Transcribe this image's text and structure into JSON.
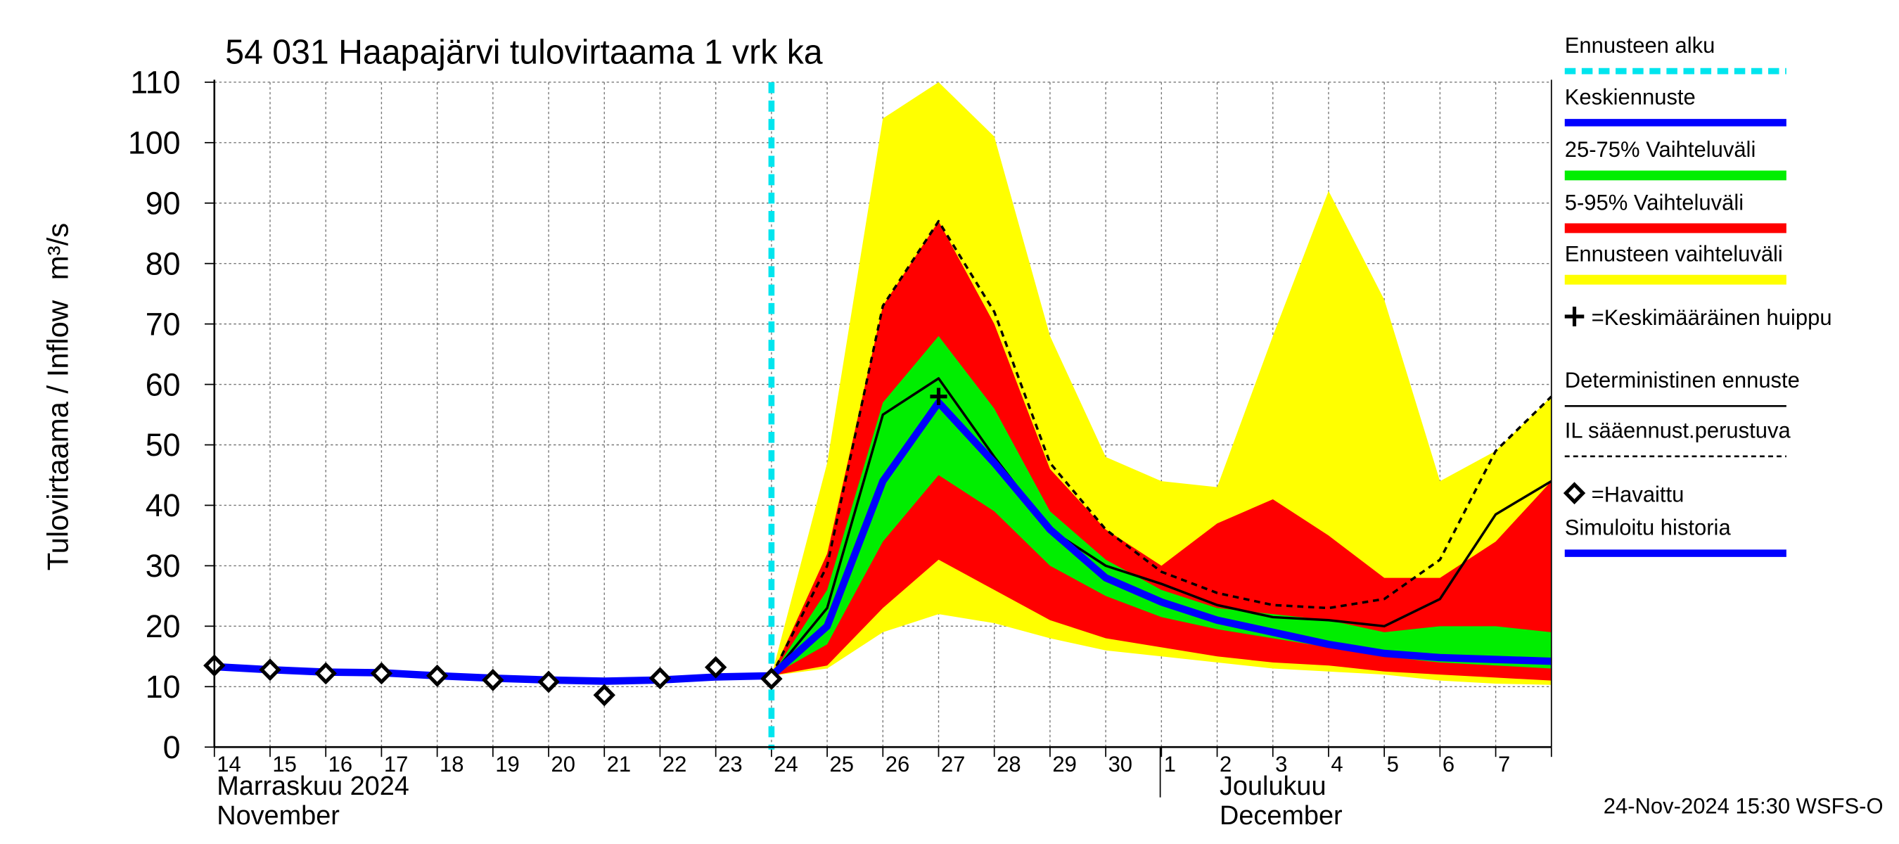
{
  "chart_data": {
    "type": "line",
    "title": "54 031 Haapajärvi tulovirtaama 1 vrk ka",
    "y_label": "Tulovirtaama / Inflow",
    "y_unit": "m³/s",
    "categories": [
      "14",
      "15",
      "16",
      "17",
      "18",
      "19",
      "20",
      "21",
      "22",
      "23",
      "24",
      "25",
      "26",
      "27",
      "28",
      "29",
      "30",
      "1",
      "2",
      "3",
      "4",
      "5",
      "6",
      "7",
      null
    ],
    "month_labels": [
      {
        "index": 0,
        "lines": [
          "Marraskuu 2024",
          "November"
        ]
      },
      {
        "index": 17,
        "lines": [
          "Joulukuu",
          "December"
        ]
      }
    ],
    "ylim": [
      0,
      110
    ],
    "yticks": [
      0,
      10,
      20,
      30,
      40,
      50,
      60,
      70,
      80,
      90,
      100,
      110
    ],
    "grid": true,
    "footer": "24-Nov-2024 15:30 WSFS-O",
    "series": [
      {
        "name": "Ennusteen alku",
        "color": "#00e5ee",
        "style": "vline",
        "values": [
          null,
          null,
          null,
          null,
          null,
          null,
          null,
          null,
          null,
          null,
          110,
          null,
          null,
          null,
          null,
          null,
          null,
          null,
          null,
          null,
          null,
          null,
          null,
          null,
          null
        ]
      },
      {
        "name": "Keskiennuste",
        "color": "#0000ff",
        "style": "mean",
        "values": [
          null,
          null,
          null,
          null,
          null,
          null,
          null,
          null,
          null,
          null,
          11.8,
          20,
          44,
          57,
          47,
          36,
          28,
          24,
          21,
          19,
          17,
          15.5,
          14.8,
          14.5,
          14.2
        ]
      },
      {
        "name": "25-75% Vaihteluväli",
        "color": "#00ee00",
        "style": "band",
        "values": [
          null,
          null,
          null,
          null,
          null,
          null,
          null,
          null,
          null,
          null,
          11.8,
          26,
          57,
          68,
          56,
          39,
          31,
          26,
          23,
          22,
          21,
          19,
          20,
          20,
          19
        ],
        "low": [
          null,
          null,
          null,
          null,
          null,
          null,
          null,
          null,
          null,
          null,
          11.8,
          17,
          34,
          45,
          39,
          30,
          25,
          21.5,
          19.5,
          18,
          16.5,
          15,
          14,
          13.5,
          13
        ]
      },
      {
        "name": "5-95% Vaihteluväli",
        "color": "#ff0000",
        "style": "band",
        "values": [
          null,
          null,
          null,
          null,
          null,
          null,
          null,
          null,
          null,
          null,
          11.8,
          32,
          73,
          87,
          70,
          46,
          36,
          30,
          37,
          41,
          35,
          28,
          28,
          34,
          44
        ],
        "low": [
          null,
          null,
          null,
          null,
          null,
          null,
          null,
          null,
          null,
          null,
          11.8,
          13.5,
          23,
          31,
          26,
          21,
          18,
          16.5,
          15,
          14,
          13.5,
          12.5,
          12,
          11.5,
          11
        ]
      },
      {
        "name": "Ennusteen vaihteluväli",
        "color": "#ffff00",
        "style": "band",
        "values": [
          null,
          null,
          null,
          null,
          null,
          null,
          null,
          null,
          null,
          null,
          11.8,
          47,
          104,
          110,
          101,
          68,
          48,
          44,
          43,
          68,
          92,
          74,
          44,
          49,
          58
        ],
        "low": [
          null,
          null,
          null,
          null,
          null,
          null,
          null,
          null,
          null,
          null,
          11.8,
          13,
          19,
          22,
          20.5,
          18,
          16,
          15,
          14,
          13,
          12.5,
          12,
          11,
          10.5,
          10.3
        ]
      },
      {
        "name": "=Keskimääräinen huippu",
        "color": "#000000",
        "style": "peak",
        "values": [
          null,
          null,
          null,
          null,
          null,
          null,
          null,
          null,
          null,
          null,
          null,
          null,
          null,
          58,
          null,
          null,
          null,
          null,
          null,
          null,
          null,
          null,
          null,
          null,
          null
        ]
      },
      {
        "name": "Deterministinen ennuste",
        "color": "#000000",
        "style": "line",
        "values": [
          null,
          null,
          null,
          null,
          null,
          null,
          null,
          null,
          null,
          null,
          11.8,
          23,
          55,
          61,
          48,
          36,
          30,
          27,
          23.5,
          21.5,
          21,
          20,
          24.5,
          38.5,
          44
        ]
      },
      {
        "name": "IL sääennust.perustuva",
        "color": "#000000",
        "style": "dashed",
        "values": [
          null,
          null,
          null,
          null,
          null,
          null,
          null,
          null,
          null,
          null,
          11.8,
          30,
          73,
          87,
          72,
          47,
          36,
          29,
          25.5,
          23.5,
          23,
          24.5,
          31,
          49,
          58
        ]
      },
      {
        "name": "=Havaittu",
        "color": "#000000",
        "style": "markers",
        "values": [
          13.5,
          12.8,
          12.2,
          12.2,
          11.8,
          11.1,
          10.8,
          8.6,
          11.4,
          13.2,
          11.3,
          null,
          null,
          null,
          null,
          null,
          null,
          null,
          null,
          null,
          null,
          null,
          null,
          null,
          null
        ]
      },
      {
        "name": "Simuloitu historia",
        "color": "#0000ff",
        "style": "sim",
        "values": [
          13.3,
          12.8,
          12.4,
          12.3,
          11.8,
          11.4,
          11.1,
          10.9,
          11.1,
          11.6,
          11.8,
          null,
          null,
          null,
          null,
          null,
          null,
          null,
          null,
          null,
          null,
          null,
          null,
          null,
          null
        ]
      }
    ]
  }
}
